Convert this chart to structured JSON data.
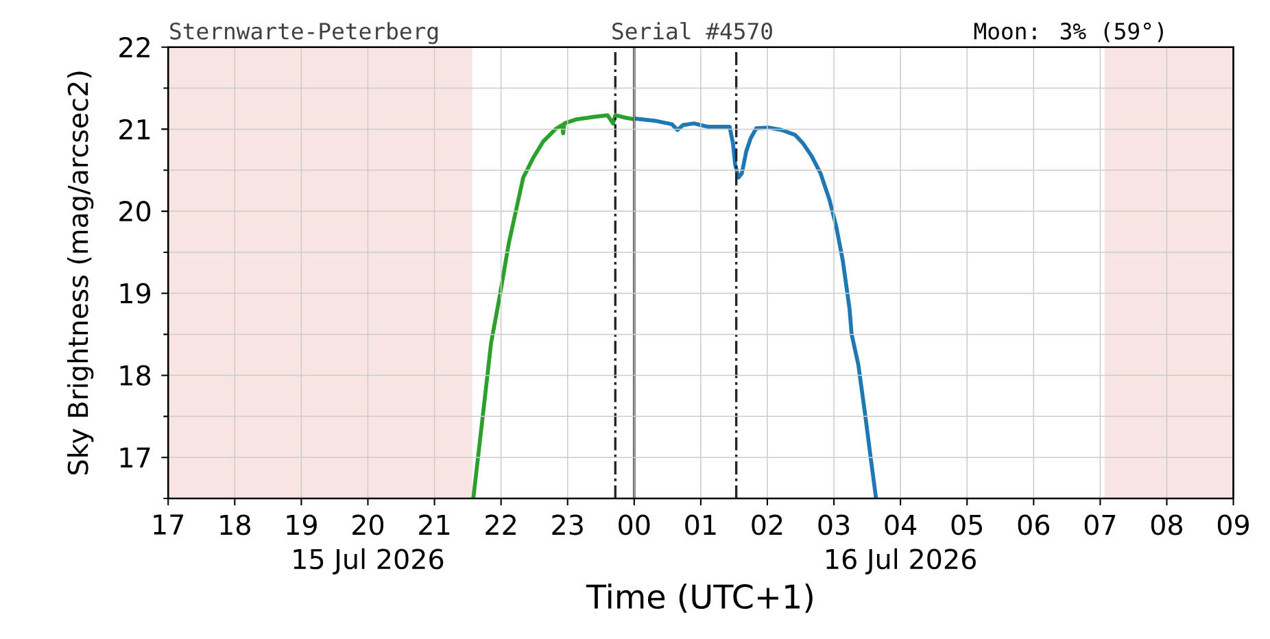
{
  "chart_data": {
    "type": "line",
    "title": "Sternwarte-Peterberg",
    "subtitle": "Serial #4570",
    "xlabel": "Time (UTC+1)",
    "ylabel": "Sky Brightness (mag/arcsec2)",
    "annotations": [
      "Moon: 3% (59°)",
      "15 Jul 2026",
      "16 Jul 2026"
    ],
    "xlim": [
      "2026-07-15T17:00",
      "2026-07-16T09:00"
    ],
    "xticks": [
      {
        "value": "2026-07-15T17:00",
        "label": "17"
      },
      {
        "value": "2026-07-15T18:00",
        "label": "18"
      },
      {
        "value": "2026-07-15T19:00",
        "label": "19"
      },
      {
        "value": "2026-07-15T20:00",
        "label": "20"
      },
      {
        "value": "2026-07-15T21:00",
        "label": "21"
      },
      {
        "value": "2026-07-15T22:00",
        "label": "22"
      },
      {
        "value": "2026-07-15T23:00",
        "label": "23"
      },
      {
        "value": "2026-07-16T00:00",
        "label": "00"
      },
      {
        "value": "2026-07-16T01:00",
        "label": "01"
      },
      {
        "value": "2026-07-16T02:00",
        "label": "02"
      },
      {
        "value": "2026-07-16T03:00",
        "label": "03"
      },
      {
        "value": "2026-07-16T04:00",
        "label": "04"
      },
      {
        "value": "2026-07-16T05:00",
        "label": "05"
      },
      {
        "value": "2026-07-16T06:00",
        "label": "06"
      },
      {
        "value": "2026-07-16T07:00",
        "label": "07"
      },
      {
        "value": "2026-07-16T08:00",
        "label": "08"
      },
      {
        "value": "2026-07-16T09:00",
        "label": "09"
      }
    ],
    "ylim": [
      16.5,
      22
    ],
    "yticks": [
      {
        "value": 16.5,
        "label": null
      },
      17,
      {
        "value": 17.5,
        "label": null
      },
      18,
      {
        "value": 18.5,
        "label": null
      },
      19,
      {
        "value": 19.5,
        "label": null
      },
      20,
      {
        "value": 20.5,
        "label": null
      },
      21,
      {
        "value": 21.5,
        "label": null
      },
      22
    ],
    "grid": true,
    "marker": "none",
    "line_style": "solid",
    "series": [
      {
        "color": "#2ca02c",
        "x": [
          "2026-07-15T21:35",
          "2026-07-15T21:43",
          "2026-07-15T21:51",
          "2026-07-15T21:59",
          "2026-07-15T22:07",
          "2026-07-15T22:13",
          "2026-07-15T22:20",
          "2026-07-15T22:29",
          "2026-07-15T22:38",
          "2026-07-15T22:49",
          "2026-07-15T22:55",
          "2026-07-15T22:56",
          "2026-07-15T22:57",
          "2026-07-15T23:08",
          "2026-07-15T23:24",
          "2026-07-15T23:36",
          "2026-07-15T23:41",
          "2026-07-15T23:43",
          "2026-07-15T23:52",
          "2026-07-16T00:00"
        ],
        "values": [
          16.5,
          17.44,
          18.39,
          18.98,
          19.61,
          19.98,
          20.41,
          20.65,
          20.85,
          21.0,
          21.05,
          20.95,
          21.07,
          21.12,
          21.15,
          21.17,
          21.07,
          21.17,
          21.14,
          21.12
        ]
      },
      {
        "color": "#1f77b4",
        "x": [
          "2026-07-16T00:00",
          "2026-07-16T00:20",
          "2026-07-16T00:34",
          "2026-07-16T00:39",
          "2026-07-16T00:44",
          "2026-07-16T00:54",
          "2026-07-16T01:06",
          "2026-07-16T01:26",
          "2026-07-16T01:29",
          "2026-07-16T01:31",
          "2026-07-16T01:34",
          "2026-07-16T01:37",
          "2026-07-16T01:41",
          "2026-07-16T01:45",
          "2026-07-16T01:50",
          "2026-07-16T02:01",
          "2026-07-16T02:13",
          "2026-07-16T02:25",
          "2026-07-16T02:32",
          "2026-07-16T02:40",
          "2026-07-16T02:48",
          "2026-07-16T02:56",
          "2026-07-16T03:02",
          "2026-07-16T03:08",
          "2026-07-16T03:14",
          "2026-07-16T03:16",
          "2026-07-16T03:22",
          "2026-07-16T03:28",
          "2026-07-16T03:33",
          "2026-07-16T03:38"
        ],
        "values": [
          21.13,
          21.1,
          21.06,
          20.99,
          21.05,
          21.07,
          21.03,
          21.03,
          20.83,
          20.57,
          20.41,
          20.46,
          20.73,
          20.89,
          21.01,
          21.02,
          20.99,
          20.93,
          20.83,
          20.67,
          20.46,
          20.14,
          19.82,
          19.4,
          18.82,
          18.5,
          18.13,
          17.54,
          17.01,
          16.5
        ]
      }
    ],
    "bands": [
      {
        "axis": "x",
        "from": "2026-07-15T17:00",
        "to": "2026-07-15T21:34",
        "color": "#f9e4e4"
      },
      {
        "axis": "x",
        "from": "2026-07-16T07:04",
        "to": "2026-07-16T09:00",
        "color": "#f9e4e4"
      }
    ],
    "ref_lines": [
      {
        "axis": "x",
        "value": "2026-07-15T23:43",
        "color": "#262626",
        "line_style": "dashdot"
      },
      {
        "axis": "x",
        "value": "2026-07-16T00:00",
        "color": "#262626",
        "line_style": "solid"
      },
      {
        "axis": "x",
        "value": "2026-07-16T01:32",
        "color": "#262626",
        "line_style": "dashdot"
      }
    ]
  }
}
